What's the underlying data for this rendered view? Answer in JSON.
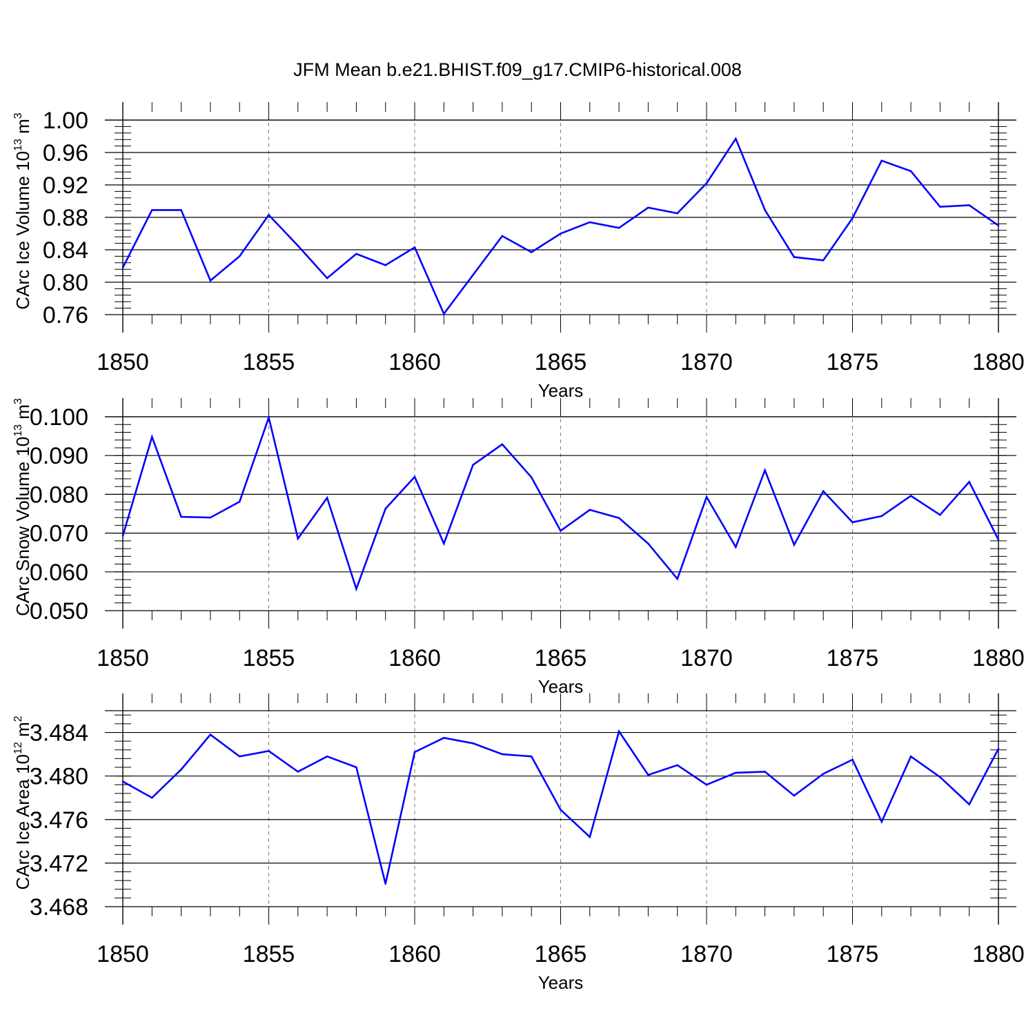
{
  "title": "JFM Mean b.e21.BHIST.f09_g17.CMIP6-historical.008",
  "colors": {
    "line": "#0000ff",
    "axis": "#000000",
    "grid": "#7a7a7a"
  },
  "chart_data": [
    {
      "type": "line",
      "xlabel": "Years",
      "ylabel_main": "CArc Ice Volume 10",
      "ylabel_exp": "13",
      "ylabel_unit": " m",
      "ylabel_unit_exp": "3",
      "xlim": [
        1850,
        1880
      ],
      "ylim": [
        0.76,
        1.0
      ],
      "x_ticks": [
        1850,
        1855,
        1860,
        1865,
        1870,
        1875,
        1880
      ],
      "x_tick_labels": [
        "1850",
        "1855",
        "1860",
        "1865",
        "1870",
        "1875",
        "1880"
      ],
      "y_ticks": [
        0.76,
        0.8,
        0.84,
        0.88,
        0.92,
        0.96,
        1.0
      ],
      "y_tick_labels": [
        "0.76",
        "0.80",
        "0.84",
        "0.88",
        "0.92",
        "0.96",
        "1.00"
      ],
      "grid": "x-dashed",
      "x": [
        1850,
        1851,
        1852,
        1853,
        1854,
        1855,
        1856,
        1857,
        1858,
        1859,
        1860,
        1861,
        1862,
        1863,
        1864,
        1865,
        1866,
        1867,
        1868,
        1869,
        1870,
        1871,
        1872,
        1873,
        1874,
        1875,
        1876,
        1877,
        1878,
        1879,
        1880
      ],
      "values": [
        0.818,
        0.889,
        0.889,
        0.802,
        0.832,
        0.883,
        0.845,
        0.805,
        0.835,
        0.821,
        0.843,
        0.761,
        0.809,
        0.857,
        0.837,
        0.86,
        0.874,
        0.867,
        0.892,
        0.885,
        0.922,
        0.977,
        0.889,
        0.831,
        0.827,
        0.879,
        0.95,
        0.937,
        0.893,
        0.895,
        0.87
      ]
    },
    {
      "type": "line",
      "xlabel": "Years",
      "ylabel_main": "CArc Snow Volume 10",
      "ylabel_exp": "13",
      "ylabel_unit": " m",
      "ylabel_unit_exp": "3",
      "xlim": [
        1850,
        1880
      ],
      "ylim": [
        0.05,
        0.1
      ],
      "x_ticks": [
        1850,
        1855,
        1860,
        1865,
        1870,
        1875,
        1880
      ],
      "x_tick_labels": [
        "1850",
        "1855",
        "1860",
        "1865",
        "1870",
        "1875",
        "1880"
      ],
      "y_ticks": [
        0.05,
        0.06,
        0.07,
        0.08,
        0.09,
        0.1
      ],
      "y_tick_labels": [
        "0.050",
        "0.060",
        "0.070",
        "0.080",
        "0.090",
        "0.100"
      ],
      "grid": "x-dashed",
      "x": [
        1850,
        1851,
        1852,
        1853,
        1854,
        1855,
        1856,
        1857,
        1858,
        1859,
        1860,
        1861,
        1862,
        1863,
        1864,
        1865,
        1866,
        1867,
        1868,
        1869,
        1870,
        1871,
        1872,
        1873,
        1874,
        1875,
        1876,
        1877,
        1878,
        1879,
        1880
      ],
      "values": [
        0.0693,
        0.0948,
        0.0742,
        0.074,
        0.0781,
        0.0998,
        0.0686,
        0.0791,
        0.0556,
        0.0763,
        0.0845,
        0.0673,
        0.0876,
        0.0929,
        0.0844,
        0.0706,
        0.076,
        0.0739,
        0.0673,
        0.0582,
        0.0793,
        0.0664,
        0.0862,
        0.067,
        0.0808,
        0.0728,
        0.0744,
        0.0796,
        0.0747,
        0.0832,
        0.0683
      ]
    },
    {
      "type": "line",
      "xlabel": "Years",
      "ylabel_main": "CArc Ice Area 10",
      "ylabel_exp": "12",
      "ylabel_unit": " m",
      "ylabel_unit_exp": "2",
      "xlim": [
        1850,
        1880
      ],
      "ylim": [
        3.468,
        3.486
      ],
      "x_ticks": [
        1850,
        1855,
        1860,
        1865,
        1870,
        1875,
        1880
      ],
      "x_tick_labels": [
        "1850",
        "1855",
        "1860",
        "1865",
        "1870",
        "1875",
        "1880"
      ],
      "y_ticks": [
        3.468,
        3.472,
        3.476,
        3.48,
        3.484
      ],
      "y_tick_labels": [
        "3.468",
        "3.472",
        "3.476",
        "3.480",
        "3.484"
      ],
      "grid": "x-dashed",
      "x": [
        1850,
        1851,
        1852,
        1853,
        1854,
        1855,
        1856,
        1857,
        1858,
        1859,
        1860,
        1861,
        1862,
        1863,
        1864,
        1865,
        1866,
        1867,
        1868,
        1869,
        1870,
        1871,
        1872,
        1873,
        1874,
        1875,
        1876,
        1877,
        1878,
        1879,
        1880
      ],
      "values": [
        3.4795,
        3.478,
        3.4806,
        3.4838,
        3.4818,
        3.4823,
        3.4804,
        3.4818,
        3.4808,
        3.4701,
        3.4822,
        3.4835,
        3.483,
        3.482,
        3.4818,
        3.4769,
        3.4744,
        3.4841,
        3.4801,
        3.481,
        3.4792,
        3.4803,
        3.4804,
        3.4782,
        3.4802,
        3.4815,
        3.4758,
        3.4818,
        3.4799,
        3.4774,
        3.4825
      ]
    }
  ]
}
